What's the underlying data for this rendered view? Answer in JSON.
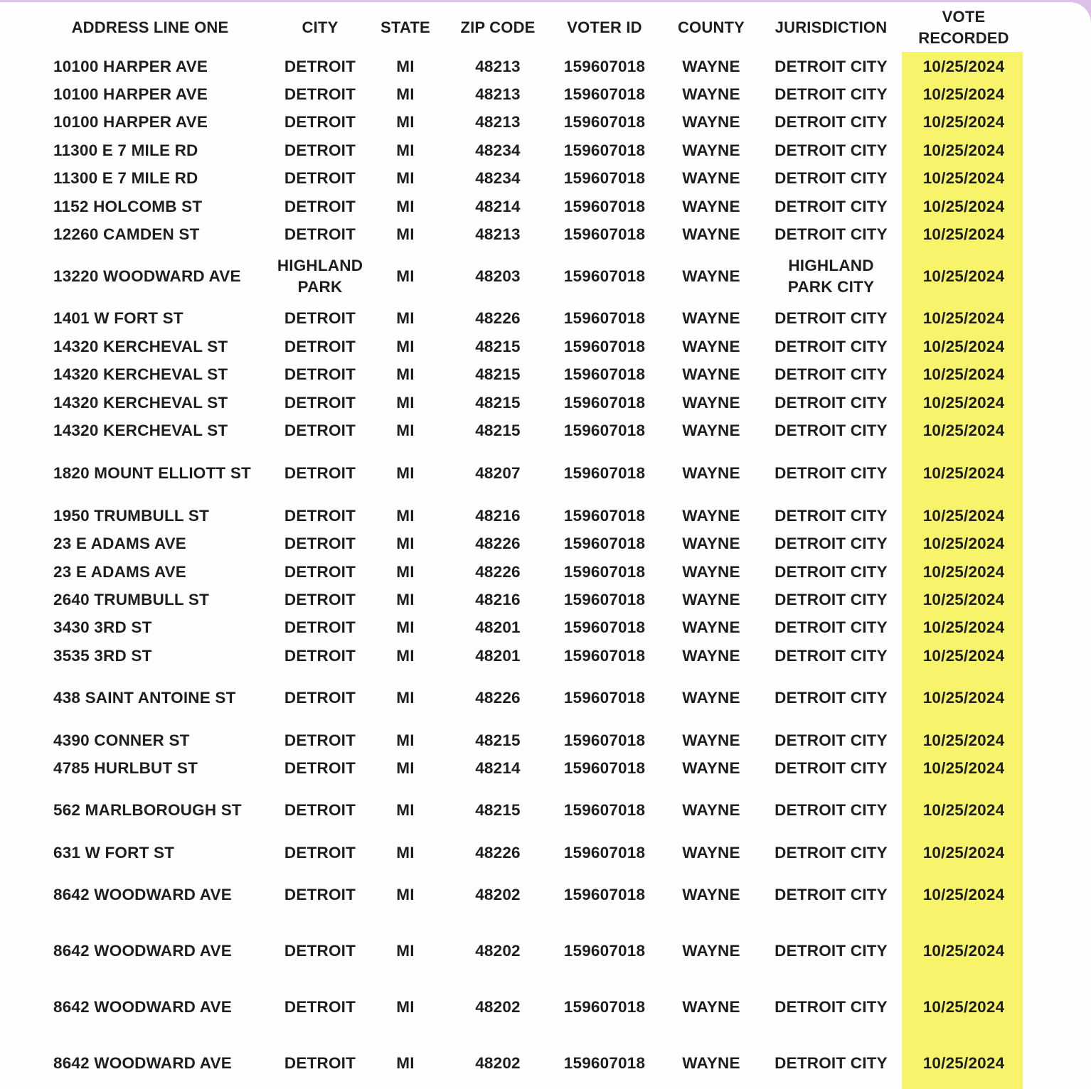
{
  "page": {
    "background_color": "#dcc0ea",
    "sheet_color": "#ffffff",
    "highlight_color": "#f7f46c",
    "text_color": "#1e1e1e"
  },
  "table": {
    "headers": [
      "ADDRESS LINE ONE",
      "CITY",
      "STATE",
      "ZIP CODE",
      "VOTER ID",
      "COUNTY",
      "JURISDICTION",
      "VOTE RECORDED"
    ],
    "column_keys": [
      "address",
      "city",
      "state",
      "zip",
      "voter-id",
      "county",
      "jurisdiction",
      "vote-recorded"
    ],
    "rows": [
      {
        "cells": [
          "10100 HARPER AVE",
          "DETROIT",
          "MI",
          "48213",
          "159607018",
          "WAYNE",
          "DETROIT CITY",
          "10/25/2024"
        ]
      },
      {
        "cells": [
          "10100 HARPER AVE",
          "DETROIT",
          "MI",
          "48213",
          "159607018",
          "WAYNE",
          "DETROIT CITY",
          "10/25/2024"
        ]
      },
      {
        "cells": [
          "10100 HARPER AVE",
          "DETROIT",
          "MI",
          "48213",
          "159607018",
          "WAYNE",
          "DETROIT CITY",
          "10/25/2024"
        ]
      },
      {
        "cells": [
          "11300 E 7 MILE RD",
          "DETROIT",
          "MI",
          "48234",
          "159607018",
          "WAYNE",
          "DETROIT CITY",
          "10/25/2024"
        ]
      },
      {
        "cells": [
          "11300 E 7 MILE RD",
          "DETROIT",
          "MI",
          "48234",
          "159607018",
          "WAYNE",
          "DETROIT CITY",
          "10/25/2024"
        ]
      },
      {
        "cells": [
          "1152 HOLCOMB ST",
          "DETROIT",
          "MI",
          "48214",
          "159607018",
          "WAYNE",
          "DETROIT CITY",
          "10/25/2024"
        ]
      },
      {
        "cells": [
          "12260 CAMDEN ST",
          "DETROIT",
          "MI",
          "48213",
          "159607018",
          "WAYNE",
          "DETROIT CITY",
          "10/25/2024"
        ]
      },
      {
        "cells": [
          "13220 WOODWARD AVE",
          "HIGHLAND PARK",
          "MI",
          "48203",
          "159607018",
          "WAYNE",
          "HIGHLAND PARK CITY",
          "10/25/2024"
        ],
        "tall": true
      },
      {
        "cells": [
          "1401 W FORT ST",
          "DETROIT",
          "MI",
          "48226",
          "159607018",
          "WAYNE",
          "DETROIT CITY",
          "10/25/2024"
        ]
      },
      {
        "cells": [
          "14320 KERCHEVAL ST",
          "DETROIT",
          "MI",
          "48215",
          "159607018",
          "WAYNE",
          "DETROIT CITY",
          "10/25/2024"
        ]
      },
      {
        "cells": [
          "14320 KERCHEVAL ST",
          "DETROIT",
          "MI",
          "48215",
          "159607018",
          "WAYNE",
          "DETROIT CITY",
          "10/25/2024"
        ]
      },
      {
        "cells": [
          "14320 KERCHEVAL ST",
          "DETROIT",
          "MI",
          "48215",
          "159607018",
          "WAYNE",
          "DETROIT CITY",
          "10/25/2024"
        ]
      },
      {
        "cells": [
          "14320 KERCHEVAL ST",
          "DETROIT",
          "MI",
          "48215",
          "159607018",
          "WAYNE",
          "DETROIT CITY",
          "10/25/2024"
        ]
      },
      {
        "spacer": 21
      },
      {
        "cells": [
          "1820 MOUNT ELLIOTT ST",
          "DETROIT",
          "MI",
          "48207",
          "159607018",
          "WAYNE",
          "DETROIT CITY",
          "10/25/2024"
        ]
      },
      {
        "spacer": 20
      },
      {
        "cells": [
          "1950 TRUMBULL ST",
          "DETROIT",
          "MI",
          "48216",
          "159607018",
          "WAYNE",
          "DETROIT CITY",
          "10/25/2024"
        ]
      },
      {
        "cells": [
          "23 E ADAMS AVE",
          "DETROIT",
          "MI",
          "48226",
          "159607018",
          "WAYNE",
          "DETROIT CITY",
          "10/25/2024"
        ]
      },
      {
        "cells": [
          "23 E ADAMS AVE",
          "DETROIT",
          "MI",
          "48226",
          "159607018",
          "WAYNE",
          "DETROIT CITY",
          "10/25/2024"
        ]
      },
      {
        "cells": [
          "2640 TRUMBULL ST",
          "DETROIT",
          "MI",
          "48216",
          "159607018",
          "WAYNE",
          "DETROIT CITY",
          "10/25/2024"
        ]
      },
      {
        "cells": [
          "3430 3RD ST",
          "DETROIT",
          "MI",
          "48201",
          "159607018",
          "WAYNE",
          "DETROIT CITY",
          "10/25/2024"
        ]
      },
      {
        "cells": [
          "3535 3RD ST",
          "DETROIT",
          "MI",
          "48201",
          "159607018",
          "WAYNE",
          "DETROIT CITY",
          "10/25/2024"
        ]
      },
      {
        "spacer": 20
      },
      {
        "cells": [
          "438 SAINT ANTOINE ST",
          "DETROIT",
          "MI",
          "48226",
          "159607018",
          "WAYNE",
          "DETROIT CITY",
          "10/25/2024"
        ]
      },
      {
        "spacer": 20
      },
      {
        "cells": [
          "4390 CONNER ST",
          "DETROIT",
          "MI",
          "48215",
          "159607018",
          "WAYNE",
          "DETROIT CITY",
          "10/25/2024"
        ]
      },
      {
        "cells": [
          "4785 HURLBUT ST",
          "DETROIT",
          "MI",
          "48214",
          "159607018",
          "WAYNE",
          "DETROIT CITY",
          "10/25/2024"
        ]
      },
      {
        "spacer": 20
      },
      {
        "cells": [
          "562 MARLBOROUGH ST",
          "DETROIT",
          "MI",
          "48215",
          "159607018",
          "WAYNE",
          "DETROIT CITY",
          "10/25/2024"
        ]
      },
      {
        "spacer": 20
      },
      {
        "cells": [
          "631 W FORT ST",
          "DETROIT",
          "MI",
          "48226",
          "159607018",
          "WAYNE",
          "DETROIT CITY",
          "10/25/2024"
        ]
      },
      {
        "spacer": 20
      },
      {
        "cells": [
          "8642 WOODWARD AVE",
          "DETROIT",
          "MI",
          "48202",
          "159607018",
          "WAYNE",
          "DETROIT CITY",
          "10/25/2024"
        ]
      },
      {
        "spacer": 40
      },
      {
        "cells": [
          "8642 WOODWARD AVE",
          "DETROIT",
          "MI",
          "48202",
          "159607018",
          "WAYNE",
          "DETROIT CITY",
          "10/25/2024"
        ]
      },
      {
        "spacer": 39
      },
      {
        "cells": [
          "8642 WOODWARD AVE",
          "DETROIT",
          "MI",
          "48202",
          "159607018",
          "WAYNE",
          "DETROIT CITY",
          "10/25/2024"
        ]
      },
      {
        "spacer": 40
      },
      {
        "cells": [
          "8642 WOODWARD AVE",
          "DETROIT",
          "MI",
          "48202",
          "159607018",
          "WAYNE",
          "DETROIT CITY",
          "10/25/2024"
        ]
      }
    ]
  }
}
